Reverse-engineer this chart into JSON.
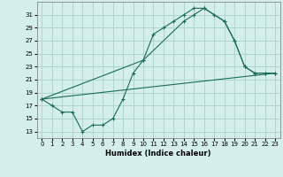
{
  "xlabel": "Humidex (Indice chaleur)",
  "bg_color": "#d4eeea",
  "grid_color": "#aed4ce",
  "line_color": "#1a6b5a",
  "xlim": [
    -0.5,
    23.5
  ],
  "ylim": [
    12,
    33
  ],
  "yticks": [
    13,
    15,
    17,
    19,
    21,
    23,
    25,
    27,
    29,
    31
  ],
  "xticks": [
    0,
    1,
    2,
    3,
    4,
    5,
    6,
    7,
    8,
    9,
    10,
    11,
    12,
    13,
    14,
    15,
    16,
    17,
    18,
    19,
    20,
    21,
    22,
    23
  ],
  "line1_x": [
    0,
    1,
    2,
    3,
    4,
    5,
    6,
    7,
    8,
    9,
    10,
    11,
    12,
    13,
    14,
    15,
    16,
    17,
    18,
    19,
    20,
    21,
    22,
    23
  ],
  "line1_y": [
    18,
    17,
    16,
    16,
    13,
    14,
    14,
    15,
    18,
    22,
    24,
    28,
    29,
    30,
    31,
    32,
    32,
    31,
    30,
    27,
    23,
    22,
    22,
    22
  ],
  "line2_x": [
    0,
    10,
    14,
    15,
    16,
    18,
    19,
    20,
    21,
    22,
    23
  ],
  "line2_y": [
    18,
    24,
    30,
    31,
    32,
    30,
    27,
    23,
    22,
    22,
    22
  ],
  "line3_x": [
    0,
    23
  ],
  "line3_y": [
    18,
    22
  ]
}
